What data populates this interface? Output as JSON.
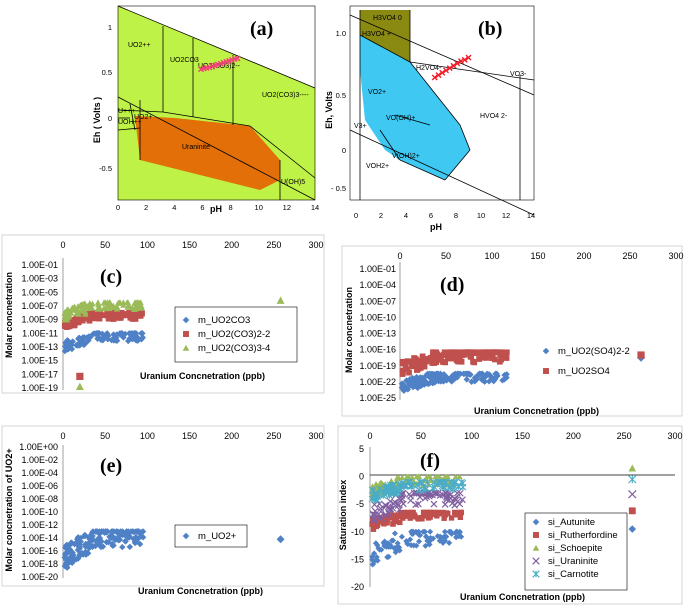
{
  "chart_data": [
    {
      "id": "a",
      "type": "phase-diagram",
      "title": "(a)",
      "xlabel": "pH",
      "ylabel": "Eh ( Volts )",
      "xlim": [
        0,
        14
      ],
      "ylim": [
        -0.8,
        1.2
      ],
      "xticks": [
        "0",
        "2",
        "4",
        "6",
        "8",
        "10",
        "12",
        "14"
      ],
      "yticks": [
        "1",
        "0.5",
        "0",
        "-0.5"
      ],
      "colors": {
        "field": "#bff246",
        "uraninite": "#e26f08",
        "data": "#f04078"
      },
      "regions": [
        {
          "label": "UO2++"
        },
        {
          "label": "UO2CO3"
        },
        {
          "label": "UO2(CO3)2--"
        },
        {
          "label": "UO2(CO3)3----"
        },
        {
          "label": "U+++"
        },
        {
          "label": "UO2+"
        },
        {
          "label": "UOH++"
        },
        {
          "label": "Uraninite"
        },
        {
          "label": "U(OH)5"
        }
      ],
      "data_points": [
        [
          5.9,
          0.55
        ],
        [
          6.1,
          0.56
        ],
        [
          6.3,
          0.565
        ],
        [
          6.5,
          0.57
        ],
        [
          6.7,
          0.585
        ],
        [
          6.9,
          0.59
        ],
        [
          7.1,
          0.6
        ],
        [
          7.3,
          0.61
        ],
        [
          7.5,
          0.62
        ],
        [
          7.7,
          0.63
        ],
        [
          7.9,
          0.64
        ],
        [
          8.1,
          0.65
        ],
        [
          8.3,
          0.66
        ],
        [
          8.5,
          0.665
        ]
      ]
    },
    {
      "id": "b",
      "type": "phase-diagram",
      "title": "(b)",
      "xlabel": "pH",
      "ylabel": "Eh, Volts",
      "xlim": [
        0,
        14
      ],
      "ylim": [
        -0.7,
        1.2
      ],
      "xticks": [
        "0",
        "2",
        "4",
        "6",
        "8",
        "10",
        "12",
        "14"
      ],
      "yticks": [
        "1.0",
        "0.5",
        "0",
        "- 0.5"
      ],
      "colors": {
        "olive": "#8a8a12",
        "blue": "#3fc8f2",
        "data": "#f01c28"
      },
      "regions": [
        {
          "label": "H3VO4 0"
        },
        {
          "label": "H3VO4 +"
        },
        {
          "label": "H2VO4-"
        },
        {
          "label": "VO3-"
        },
        {
          "label": "VO2+"
        },
        {
          "label": "VO(OH)+"
        },
        {
          "label": "HVO4 2-"
        },
        {
          "label": "V3+"
        },
        {
          "label": "VOH2+"
        },
        {
          "label": "V(OH)2+"
        }
      ],
      "data_points": [
        [
          6.3,
          0.62
        ],
        [
          6.6,
          0.64
        ],
        [
          6.9,
          0.66
        ],
        [
          7.2,
          0.68
        ],
        [
          7.5,
          0.7
        ],
        [
          7.8,
          0.72
        ],
        [
          8.1,
          0.74
        ],
        [
          8.4,
          0.76
        ],
        [
          8.7,
          0.77
        ],
        [
          9.0,
          0.79
        ]
      ]
    },
    {
      "id": "c",
      "type": "scatter",
      "title": "(c)",
      "xlabel": "Uranium Concnetration (ppb)",
      "ylabel": "Molar concnetration",
      "xlim": [
        0,
        300
      ],
      "xticks": [
        "0",
        "50",
        "100",
        "150",
        "200",
        "250",
        "300"
      ],
      "yticks": [
        "1.00E-01",
        "1.00E-03",
        "1.00E-05",
        "1.00E-07",
        "1.00E-09",
        "1.00E-11",
        "1.00E-13",
        "1.00E-15",
        "1.00E-17",
        "1.00E-19"
      ],
      "ylim_log10": [
        -19,
        -1
      ],
      "legend_position": "center-right",
      "series": [
        {
          "name": "m_UO2CO3",
          "color": "#4f81c6",
          "marker": "diamond",
          "y_range_log10": [
            -14,
            -11
          ],
          "outlier_log10": [
            [
              258,
              -11.5
            ]
          ]
        },
        {
          "name": "m_UO2(CO3)2-2",
          "color": "#c0504d",
          "marker": "square",
          "y_range_log10": [
            -10.5,
            -8
          ],
          "outlier_log10": [
            [
              20,
              -17.3
            ],
            [
              258,
              -7.8
            ]
          ]
        },
        {
          "name": "m_UO2(CO3)3-4",
          "color": "#9bbb59",
          "marker": "triangle",
          "y_range_log10": [
            -9.5,
            -6.5
          ],
          "outlier_log10": [
            [
              20,
              -18.8
            ],
            [
              258,
              -6.2
            ]
          ]
        }
      ]
    },
    {
      "id": "d",
      "type": "scatter",
      "title": "(d)",
      "xlabel": "Uranium Concnetration (ppb)",
      "ylabel": "Molar concnetration",
      "xlim": [
        0,
        300
      ],
      "xticks": [
        "0",
        "50",
        "100",
        "150",
        "200",
        "250",
        "300"
      ],
      "yticks": [
        "1.00E-01",
        "1.00E-04",
        "1.00E-07",
        "1.00E-10",
        "1.00E-13",
        "1.00E-16",
        "1.00E-19",
        "1.00E-22",
        "1.00E-25"
      ],
      "ylim_log10": [
        -25,
        -1
      ],
      "legend_position": "center-right",
      "series": [
        {
          "name": "m_UO2(SO4)2-2",
          "color": "#4f81c6",
          "marker": "diamond",
          "y_range_log10": [
            -24.5,
            -20.5
          ],
          "outlier_log10": [
            [
              262,
              -17.5
            ]
          ]
        },
        {
          "name": "m_UO2SO4",
          "color": "#c0504d",
          "marker": "square",
          "y_range_log10": [
            -21.5,
            -16.5
          ],
          "outlier_log10": [
            [
              262,
              -17.0
            ]
          ]
        }
      ]
    },
    {
      "id": "e",
      "type": "scatter",
      "title": "(e)",
      "xlabel": "Uranium Concnetration (ppb)",
      "ylabel": "Molar concnetration of UO2+",
      "xlim": [
        0,
        300
      ],
      "xticks": [
        "0",
        "50",
        "100",
        "150",
        "200",
        "250",
        "300"
      ],
      "yticks": [
        "1.00E+00",
        "1.00E-02",
        "1.00E-04",
        "1.00E-06",
        "1.00E-08",
        "1.00E-10",
        "1.00E-12",
        "1.00E-14",
        "1.00E-16",
        "1.00E-18",
        "1.00E-20"
      ],
      "ylim_log10": [
        -20,
        0
      ],
      "legend_position": "center-right",
      "series": [
        {
          "name": "m_UO2+",
          "color": "#4f81c6",
          "marker": "diamond",
          "y_range_log10": [
            -19.5,
            -13
          ],
          "outlier_log10": [
            [
              258,
              -14.2
            ]
          ]
        }
      ]
    },
    {
      "id": "f",
      "type": "scatter",
      "title": "(f)",
      "xlabel": "Uranium Concnetration (ppb)",
      "ylabel": "Saturation index",
      "xlim": [
        0,
        300
      ],
      "ylim": [
        -20,
        5
      ],
      "xticks": [
        "0",
        "50",
        "100",
        "150",
        "200",
        "250",
        "300"
      ],
      "yticks": [
        "5",
        "0",
        "-5",
        "-10",
        "-15",
        "-20"
      ],
      "legend_position": "bottom-right",
      "series": [
        {
          "name": "si_Autunite",
          "color": "#4f81c6",
          "marker": "diamond",
          "y_range": [
            -17,
            -10
          ],
          "outlier": [
            [
              258,
              -9.5
            ]
          ]
        },
        {
          "name": "si_Rutherfordine",
          "color": "#c0504d",
          "marker": "square",
          "y_range": [
            -10,
            -6.5
          ],
          "outlier": [
            [
              258,
              -6.2
            ]
          ]
        },
        {
          "name": "si_Schoepite",
          "color": "#9bbb59",
          "marker": "triangle",
          "y_range": [
            -4.5,
            0
          ],
          "outlier": [
            [
              258,
              1.5
            ]
          ]
        },
        {
          "name": "si_Uraninite",
          "color": "#7f5fa0",
          "marker": "x",
          "y_range": [
            -9,
            -3
          ],
          "outlier": [
            [
              258,
              -3.2
            ]
          ]
        },
        {
          "name": "si_Carnotite",
          "color": "#4bacc6",
          "marker": "star",
          "y_range": [
            -5,
            -1
          ],
          "outlier": [
            [
              258,
              -0.5
            ]
          ]
        }
      ]
    }
  ]
}
